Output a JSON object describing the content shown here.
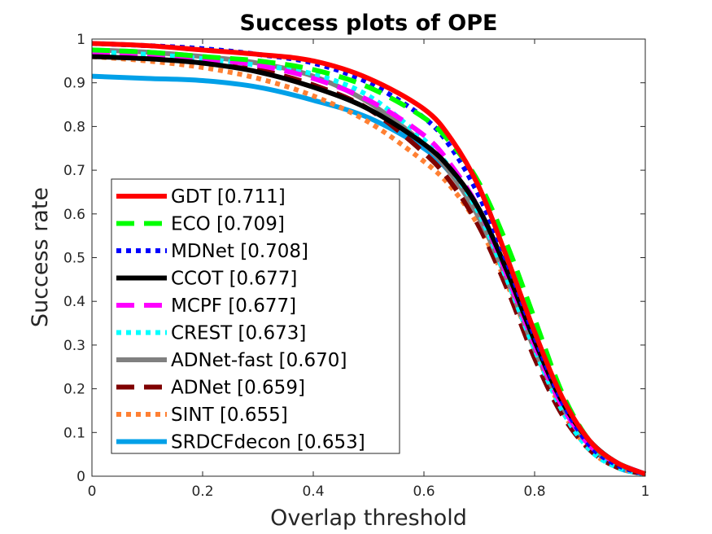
{
  "chart_data": {
    "type": "line",
    "title": "Success plots of OPE",
    "xlabel": "Overlap threshold",
    "ylabel": "Success rate",
    "xlim": [
      0,
      1
    ],
    "ylim": [
      0,
      1
    ],
    "x_ticks": [
      "0",
      "0.2",
      "0.4",
      "0.6",
      "0.8",
      "1"
    ],
    "y_ticks": [
      "0",
      "0.1",
      "0.2",
      "0.3",
      "0.4",
      "0.5",
      "0.6",
      "0.7",
      "0.8",
      "0.9",
      "1"
    ],
    "legend_position": "bottom-left",
    "x": [
      0,
      0.1,
      0.2,
      0.3,
      0.4,
      0.5,
      0.6,
      0.65,
      0.7,
      0.75,
      0.8,
      0.85,
      0.9,
      0.95,
      1.0
    ],
    "series": [
      {
        "name": "GDT [0.711]",
        "color": "#ff0000",
        "dash": "solid",
        "values": [
          0.99,
          0.985,
          0.975,
          0.965,
          0.95,
          0.91,
          0.84,
          0.77,
          0.66,
          0.5,
          0.33,
          0.18,
          0.08,
          0.03,
          0.005
        ]
      },
      {
        "name": "ECO [0.709]",
        "color": "#00ff00",
        "dash": "dashed",
        "values": [
          0.975,
          0.97,
          0.96,
          0.95,
          0.93,
          0.89,
          0.82,
          0.76,
          0.67,
          0.53,
          0.36,
          0.19,
          0.08,
          0.03,
          0.005
        ]
      },
      {
        "name": "MDNet [0.708]",
        "color": "#0000ff",
        "dash": "dotted",
        "values": [
          0.99,
          0.985,
          0.978,
          0.965,
          0.945,
          0.9,
          0.82,
          0.75,
          0.64,
          0.49,
          0.32,
          0.17,
          0.07,
          0.025,
          0.005
        ]
      },
      {
        "name": "CCOT [0.677]",
        "color": "#000000",
        "dash": "solid",
        "values": [
          0.96,
          0.955,
          0.945,
          0.925,
          0.89,
          0.84,
          0.76,
          0.7,
          0.61,
          0.47,
          0.31,
          0.17,
          0.08,
          0.03,
          0.005
        ]
      },
      {
        "name": "MCPF [0.677]",
        "color": "#ff00ff",
        "dash": "dashed",
        "values": [
          0.97,
          0.965,
          0.955,
          0.94,
          0.91,
          0.86,
          0.78,
          0.71,
          0.61,
          0.46,
          0.3,
          0.16,
          0.07,
          0.03,
          0.005
        ]
      },
      {
        "name": "CREST [0.673]",
        "color": "#00ffff",
        "dash": "dotted",
        "values": [
          0.97,
          0.965,
          0.955,
          0.94,
          0.92,
          0.87,
          0.77,
          0.7,
          0.6,
          0.45,
          0.29,
          0.15,
          0.06,
          0.02,
          0.005
        ]
      },
      {
        "name": "ADNet-fast [0.670]",
        "color": "#808080",
        "dash": "solid",
        "values": [
          0.975,
          0.97,
          0.96,
          0.945,
          0.915,
          0.855,
          0.76,
          0.69,
          0.59,
          0.45,
          0.29,
          0.16,
          0.07,
          0.03,
          0.005
        ]
      },
      {
        "name": "ADNet [0.659]",
        "color": "#7f0000",
        "dash": "dashed",
        "values": [
          0.965,
          0.96,
          0.95,
          0.93,
          0.895,
          0.84,
          0.74,
          0.67,
          0.57,
          0.43,
          0.27,
          0.14,
          0.06,
          0.02,
          0.005
        ]
      },
      {
        "name": "SINT [0.655]",
        "color": "#ff8033",
        "dash": "dotted",
        "values": [
          0.96,
          0.95,
          0.935,
          0.91,
          0.87,
          0.81,
          0.72,
          0.66,
          0.57,
          0.44,
          0.29,
          0.15,
          0.06,
          0.02,
          0.005
        ]
      },
      {
        "name": "SRDCFdecon [0.653]",
        "color": "#00a0e8",
        "dash": "solid",
        "values": [
          0.915,
          0.91,
          0.905,
          0.89,
          0.86,
          0.82,
          0.75,
          0.69,
          0.6,
          0.46,
          0.3,
          0.16,
          0.07,
          0.02,
          0.005
        ]
      }
    ]
  }
}
